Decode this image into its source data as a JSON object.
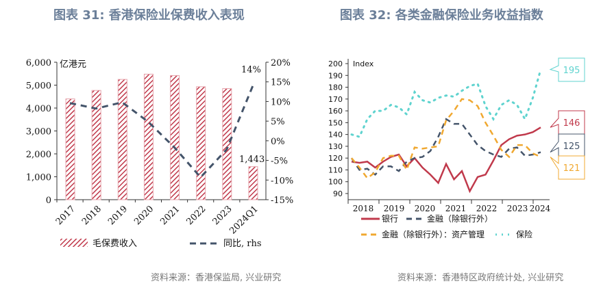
{
  "left": {
    "title": "图表 31: 香港保险业保费收入表现",
    "source": "资料来源：香港保监局, 兴业研究"
  },
  "right": {
    "title": "图表 32: 各类金融保险业务收益指数",
    "source": "资料来源：香港特区政府统计处, 兴业研究"
  },
  "chart_data": [
    {
      "type": "bar",
      "title": "香港保险业保费收入表现",
      "ylabel": "亿港元",
      "ylim": [
        0,
        6000
      ],
      "y2lim": [
        -15,
        20
      ],
      "yticks": [
        "0",
        "1,000",
        "2,000",
        "3,000",
        "4,000",
        "5,000",
        "6,000"
      ],
      "y2ticks": [
        "-15%",
        "-10%",
        "-5%",
        "0%",
        "5%",
        "10%",
        "15%",
        "20%"
      ],
      "categories": [
        "2017",
        "2018",
        "2019",
        "2020",
        "2021",
        "2022",
        "2023",
        "2024Q1"
      ],
      "series": [
        {
          "name": "毛保费收入",
          "values": [
            4400,
            4770,
            5250,
            5480,
            5420,
            4930,
            4850,
            1443
          ],
          "color": "#c0394b"
        },
        {
          "name": "同比, rhs",
          "values": [
            9.6,
            8.2,
            9.8,
            4.8,
            -1.7,
            -9.3,
            -2.2,
            14
          ],
          "color": "#44546a",
          "axis": "right"
        }
      ],
      "annotations": [
        "1,443",
        "14%"
      ]
    },
    {
      "type": "line",
      "title": "各类金融保险业务收益指数",
      "ylabel": "Index",
      "ylim": [
        85,
        200
      ],
      "yticks": [
        "90",
        "100",
        "110",
        "120",
        "130",
        "140",
        "150",
        "160",
        "170",
        "180",
        "190",
        "200"
      ],
      "xticks": [
        "2018",
        "2019",
        "2020",
        "2021",
        "2022",
        "2023",
        "2024"
      ],
      "series": [
        {
          "name": "银行",
          "color": "#c0394b",
          "end": "146",
          "values": [
            117,
            116,
            117,
            112,
            117,
            121,
            123,
            113,
            120,
            112,
            106,
            99,
            115,
            102,
            109,
            92,
            104,
            106,
            118,
            131,
            136,
            139,
            140,
            142,
            146
          ]
        },
        {
          "name": "金融（除银行外）",
          "color": "#44546a",
          "end": "125",
          "values": [
            120,
            110,
            111,
            106,
            113,
            113,
            109,
            117,
            120,
            121,
            126,
            138,
            153,
            149,
            149,
            140,
            131,
            126,
            123,
            121,
            128,
            129,
            122,
            123,
            125
          ]
        },
        {
          "name": "金融（除银行外）：资产管理",
          "color": "#f0a830",
          "end": "121",
          "values": [
            120,
            112,
            103,
            108,
            120,
            122,
            122,
            110,
            129,
            128,
            129,
            130,
            152,
            160,
            170,
            169,
            164,
            150,
            139,
            127,
            121,
            131,
            131,
            124,
            121
          ]
        },
        {
          "name": "保险",
          "color": "#5fd3cf",
          "end": "195",
          "values": [
            140,
            138,
            153,
            160,
            160,
            165,
            163,
            157,
            176,
            169,
            167,
            171,
            173,
            172,
            177,
            181,
            183,
            164,
            153,
            165,
            169,
            165,
            153,
            171,
            195
          ]
        }
      ]
    }
  ]
}
